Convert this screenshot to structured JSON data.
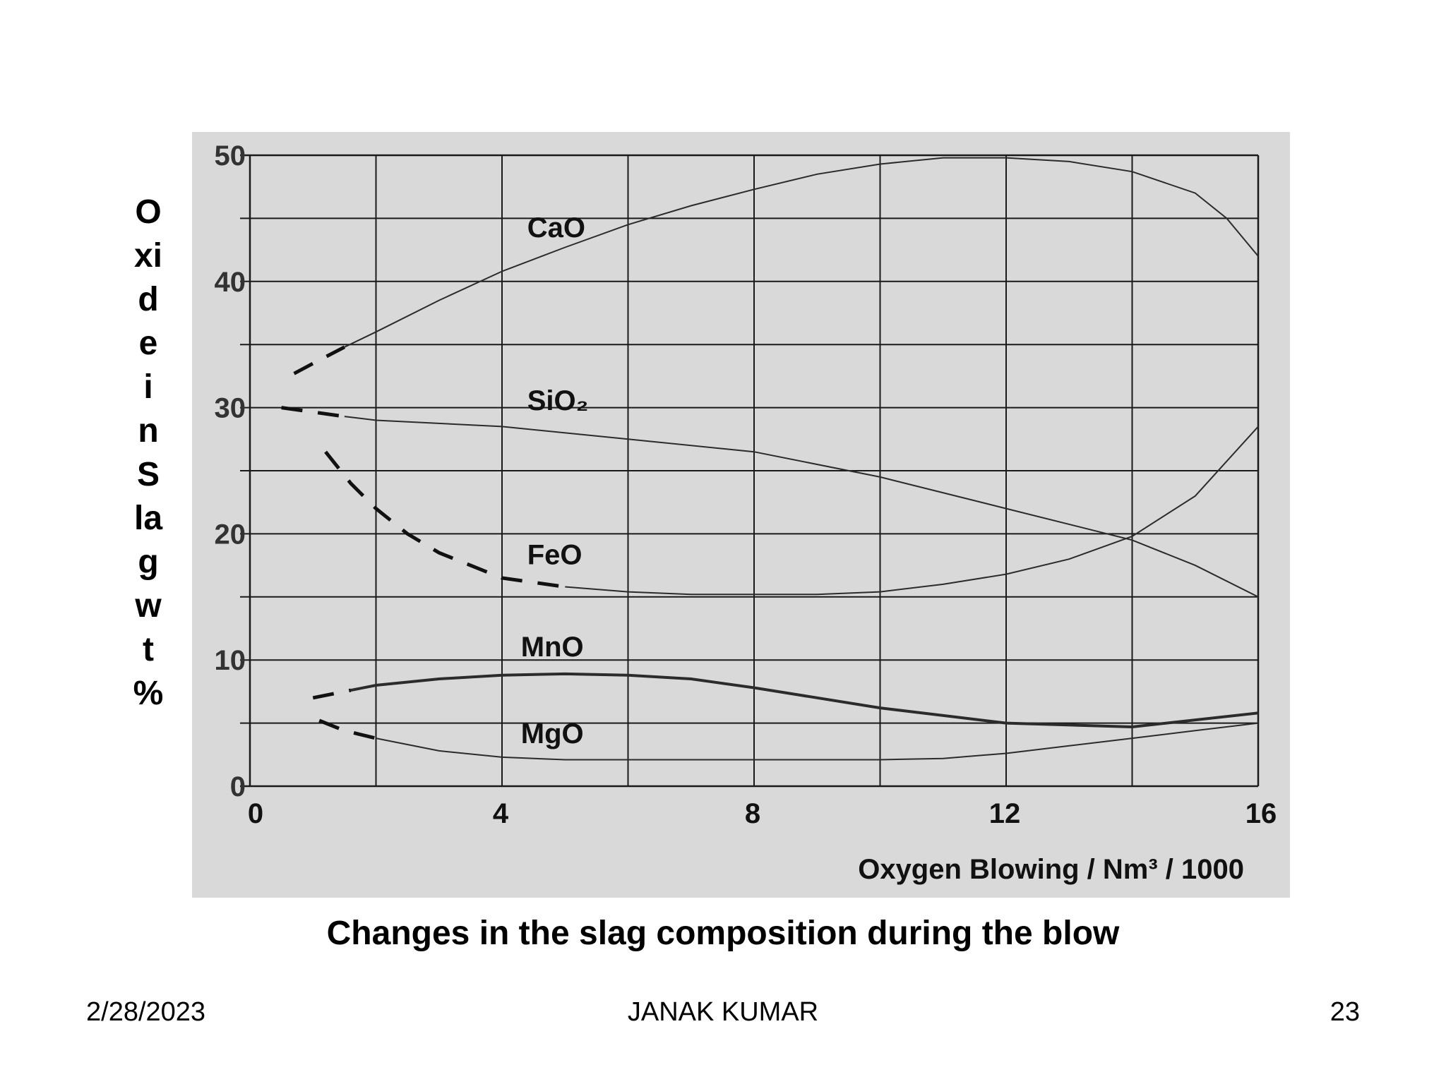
{
  "slide": {
    "caption": "Changes in the slag composition during the blow",
    "footer": {
      "date": "2/28/2023",
      "author": "JANAK KUMAR",
      "page": "23"
    }
  },
  "chart_data": {
    "type": "line",
    "ylabel_lines": [
      "O",
      "xi",
      "d",
      "e",
      "i",
      "n",
      "S",
      "la",
      "g",
      "w",
      "t",
      "%"
    ],
    "xlabel": "Oxygen Blowing / Nm³ / 1000",
    "xlim": [
      0,
      16
    ],
    "ylim": [
      0,
      50
    ],
    "x_ticks": [
      "0",
      "4",
      "8",
      "12",
      "16"
    ],
    "y_ticks": [
      "0",
      "10",
      "20",
      "30",
      "40",
      "50"
    ],
    "grid": true,
    "background": "#d9d9d9",
    "series": [
      {
        "name": "CaO",
        "x": [
          0.7,
          1.0,
          1.5,
          2,
          3,
          4,
          5,
          6,
          7,
          8,
          9,
          10,
          11,
          12,
          13,
          14,
          15,
          15.5,
          16
        ],
        "y": [
          32.7,
          33.5,
          34.8,
          36.0,
          38.5,
          40.8,
          42.7,
          44.5,
          46.0,
          47.3,
          48.5,
          49.3,
          49.8,
          49.8,
          49.5,
          48.7,
          47.0,
          45.0,
          42.0
        ],
        "dashed_until_x": 1.7,
        "label_x": 4.4,
        "label_y": 43.5
      },
      {
        "name": "SiO₂",
        "x": [
          0.5,
          1.5,
          2,
          4,
          6,
          8,
          10,
          12,
          14,
          15,
          16
        ],
        "y": [
          30.0,
          29.3,
          29.0,
          28.5,
          27.5,
          26.5,
          24.5,
          22.0,
          19.5,
          17.5,
          15.0
        ],
        "dashed_until_x": 1.7,
        "label_x": 4.4,
        "label_y": 29.8
      },
      {
        "name": "FeO",
        "x": [
          1.2,
          1.6,
          2,
          2.5,
          3,
          4,
          5,
          6,
          7,
          8,
          9,
          10,
          11,
          12,
          13,
          14,
          15,
          16
        ],
        "y": [
          26.5,
          24.0,
          22.0,
          20.0,
          18.5,
          16.5,
          15.8,
          15.4,
          15.2,
          15.2,
          15.2,
          15.4,
          16.0,
          16.8,
          18.0,
          19.8,
          23.0,
          28.5
        ],
        "dashed_until_x": 5,
        "label_x": 4.4,
        "label_y": 17.6
      },
      {
        "name": "MnO",
        "x": [
          1.0,
          1.6,
          2,
          3,
          4,
          5,
          6,
          7,
          8,
          10,
          12,
          14,
          16
        ],
        "y": [
          7.0,
          7.6,
          8.0,
          8.5,
          8.8,
          8.9,
          8.8,
          8.5,
          7.8,
          6.2,
          5.0,
          4.7,
          5.8
        ],
        "dashed_until_x": 1.7,
        "label_x": 4.3,
        "label_y": 10.3
      },
      {
        "name": "MgO",
        "x": [
          1.1,
          1.5,
          2,
          3,
          4,
          5,
          6,
          7,
          8,
          9,
          10,
          11,
          12,
          13,
          14,
          15,
          16
        ],
        "y": [
          5.2,
          4.4,
          3.8,
          2.8,
          2.3,
          2.1,
          2.1,
          2.1,
          2.1,
          2.1,
          2.1,
          2.2,
          2.6,
          3.2,
          3.8,
          4.4,
          5.0
        ],
        "dashed_until_x": 2,
        "label_x": 4.3,
        "label_y": 3.4
      }
    ]
  }
}
